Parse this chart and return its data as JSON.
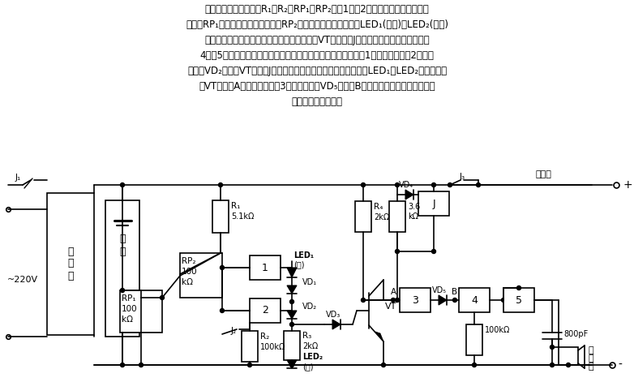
{
  "bg_color": "#ffffff",
  "line_color": "#000000",
  "header_lines": [
    "电池充放电监视电路。R₁、R₂、RP₁、RP₂、门1、门2组成电池电压检测电路，",
    "其中，RP₁调节电池放电终止电压，RP₂调节电池充电终止电压。LED₁(绿色)、LED₂(红色)",
    "分别作充电终止指示和放电终止指示。晶体管VT和继电器J组成充放电自控开关电路。门",
    "4、门5和蜂鸣器等组成音频脉冲振荡器。当电池电压正常时，门1输出高电平，门2输出低",
    "电平，VD₂导通，VT截止，J不动作，电池向负载正常供电。此时，LED₁和LED₂均不亮。由",
    "于VT截止，A点高电位，使门3输出低电平，VD₅导通，B点低电位，音频脉冲振荡器停",
    "振，蜂鸣器不发声。"
  ]
}
